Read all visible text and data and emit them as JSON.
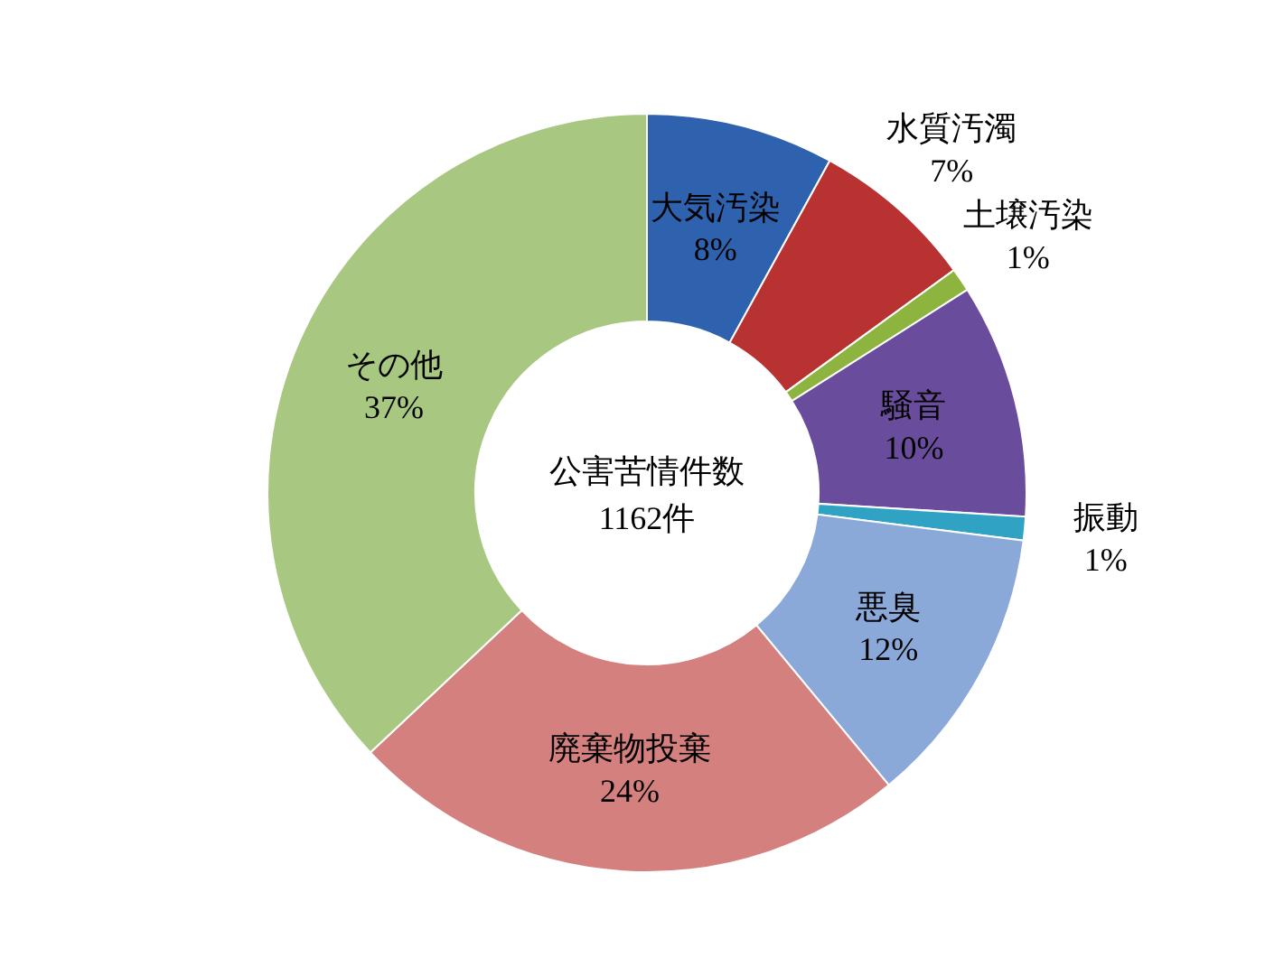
{
  "chart_data": {
    "type": "donut",
    "title": "公害苦情件数",
    "subtitle": "1162件",
    "categories": [
      "大気汚染",
      "水質汚濁",
      "土壌汚染",
      "騒音",
      "振動",
      "悪臭",
      "廃棄物投棄",
      "その他"
    ],
    "values": [
      8,
      7,
      1,
      10,
      1,
      12,
      24,
      37
    ],
    "value_labels": [
      "8%",
      "7%",
      "1%",
      "10%",
      "1%",
      "12%",
      "24%",
      "37%"
    ],
    "colors": [
      "#2e62ae",
      "#b83232",
      "#8cb43e",
      "#6a4c9c",
      "#30a2c4",
      "#8aa8d8",
      "#d4807e",
      "#a8c882"
    ]
  }
}
